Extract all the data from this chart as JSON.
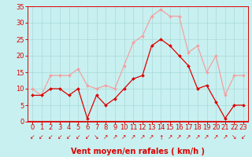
{
  "x": [
    0,
    1,
    2,
    3,
    4,
    5,
    6,
    7,
    8,
    9,
    10,
    11,
    12,
    13,
    14,
    15,
    16,
    17,
    18,
    19,
    20,
    21,
    22,
    23
  ],
  "wind_avg": [
    8,
    8,
    10,
    10,
    8,
    10,
    1,
    8,
    5,
    7,
    10,
    13,
    14,
    23,
    25,
    23,
    20,
    17,
    10,
    11,
    6,
    1,
    5,
    5
  ],
  "wind_gust": [
    10,
    8,
    14,
    14,
    14,
    16,
    11,
    10,
    11,
    10,
    17,
    24,
    26,
    32,
    34,
    32,
    32,
    21,
    23,
    15,
    20,
    8,
    14,
    14
  ],
  "avg_color": "#dd0000",
  "gust_color": "#f4a0a0",
  "bg_color": "#c8f0f0",
  "grid_color": "#a8d8d8",
  "axis_color": "#dd0000",
  "ylim": [
    0,
    35
  ],
  "yticks": [
    0,
    5,
    10,
    15,
    20,
    25,
    30,
    35
  ],
  "xlabel": "Vent moyen/en rafales ( km/h )",
  "tick_fontsize": 6,
  "label_fontsize": 7,
  "wind_dirs": [
    "↙",
    "↙",
    "↙",
    "↙",
    "↙",
    "↙",
    "↙",
    "↘",
    "↗",
    "↗",
    "↗",
    "↗",
    "↗",
    "↗",
    "↑",
    "↗",
    "↗",
    "↗",
    "↗",
    "↗",
    "↗",
    "↗",
    "↘",
    "↙"
  ]
}
